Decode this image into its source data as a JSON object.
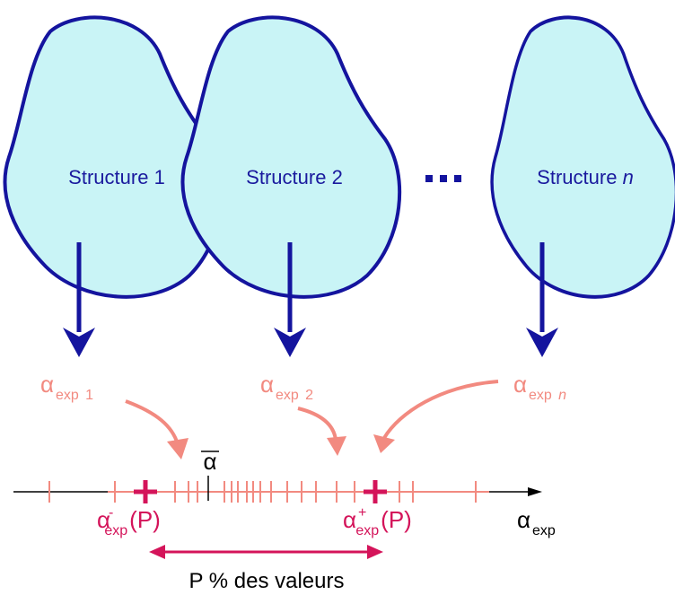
{
  "structures": [
    {
      "name": "Structure",
      "index": "1"
    },
    {
      "name": "Structure",
      "index": "2"
    },
    {
      "name": "Structure",
      "index": "n"
    }
  ],
  "samples": [
    {
      "symbol": "α",
      "subscript": "exp",
      "index": "1"
    },
    {
      "symbol": "α",
      "subscript": "exp",
      "index": "2"
    },
    {
      "symbol": "α",
      "subscript": "exp",
      "index": "n"
    }
  ],
  "axis": {
    "mean_symbol": "α",
    "lower": {
      "symbol": "α",
      "sign": "-",
      "subscript": "exp",
      "suffix": "(P)"
    },
    "upper": {
      "symbol": "α",
      "sign": "+",
      "subscript": "exp",
      "suffix": "(P)"
    },
    "label": {
      "symbol": "α",
      "subscript": "exp"
    }
  },
  "interval_label": "P % des valeurs"
}
